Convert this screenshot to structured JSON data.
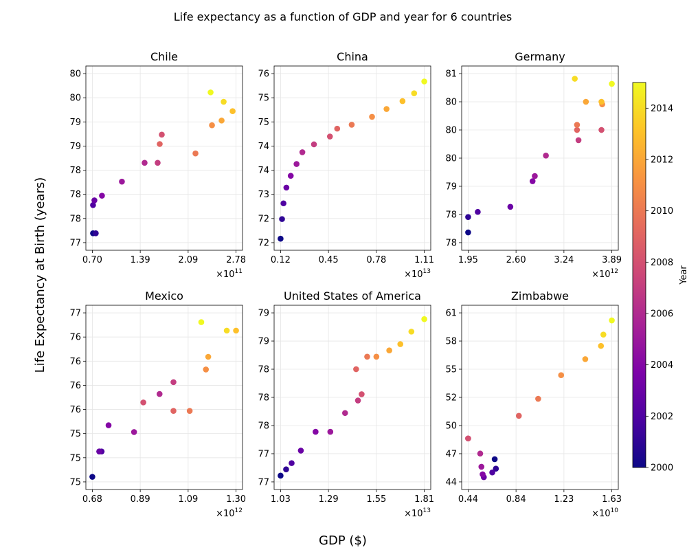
{
  "figure": {
    "title": "Life expectancy as a function of GDP and year for 6 countries",
    "xlabel": "GDP ($)",
    "ylabel": "Life Expectancy at Birth (years)"
  },
  "colorbar": {
    "label": "Year",
    "ticks": [
      "2000",
      "2002",
      "2004",
      "2006",
      "2008",
      "2010",
      "2012",
      "2014"
    ],
    "range": [
      2000,
      2015
    ],
    "colormap": "plasma"
  },
  "chart_data": [
    {
      "type": "scatter",
      "title": "Chile",
      "x_tick_labels": [
        "0.70",
        "1.39",
        "2.09",
        "2.78"
      ],
      "x_multiplier": "×10^11",
      "y_tick_labels": [
        "77",
        "78",
        "78",
        "78",
        "79",
        "79",
        "80",
        "80"
      ],
      "xlim": [
        0.69,
        2.78
      ],
      "ylim": [
        76.8,
        80.4
      ],
      "grid": true,
      "points": [
        {
          "year": 2000,
          "x": 0.7,
          "y": 77.0
        },
        {
          "year": 2001,
          "x": 0.74,
          "y": 77.0
        },
        {
          "year": 2002,
          "x": 0.7,
          "y": 77.6
        },
        {
          "year": 2003,
          "x": 0.72,
          "y": 77.7
        },
        {
          "year": 2004,
          "x": 0.83,
          "y": 77.8
        },
        {
          "year": 2005,
          "x": 1.12,
          "y": 78.1
        },
        {
          "year": 2006,
          "x": 1.45,
          "y": 78.5
        },
        {
          "year": 2007,
          "x": 1.64,
          "y": 78.5
        },
        {
          "year": 2008,
          "x": 1.7,
          "y": 79.1
        },
        {
          "year": 2009,
          "x": 1.67,
          "y": 78.9
        },
        {
          "year": 2010,
          "x": 2.19,
          "y": 78.7
        },
        {
          "year": 2011,
          "x": 2.43,
          "y": 79.3
        },
        {
          "year": 2012,
          "x": 2.57,
          "y": 79.4
        },
        {
          "year": 2013,
          "x": 2.73,
          "y": 79.6
        },
        {
          "year": 2014,
          "x": 2.6,
          "y": 79.8
        },
        {
          "year": 2015,
          "x": 2.41,
          "y": 80.0
        }
      ]
    },
    {
      "type": "scatter",
      "title": "China",
      "x_tick_labels": [
        "0.12",
        "0.45",
        "0.78",
        "1.11"
      ],
      "x_multiplier": "×10^13",
      "y_tick_labels": [
        "72",
        "72",
        "73",
        "74",
        "74",
        "75",
        "75",
        "76"
      ],
      "xlim": [
        0.12,
        1.11
      ],
      "ylim": [
        71.9,
        76.2
      ],
      "grid": true,
      "points": [
        {
          "year": 2000,
          "x": 0.12,
          "y": 72.0
        },
        {
          "year": 2001,
          "x": 0.13,
          "y": 72.5
        },
        {
          "year": 2002,
          "x": 0.14,
          "y": 72.9
        },
        {
          "year": 2003,
          "x": 0.16,
          "y": 73.3
        },
        {
          "year": 2004,
          "x": 0.19,
          "y": 73.6
        },
        {
          "year": 2005,
          "x": 0.23,
          "y": 73.9
        },
        {
          "year": 2006,
          "x": 0.27,
          "y": 74.2
        },
        {
          "year": 2007,
          "x": 0.35,
          "y": 74.4
        },
        {
          "year": 2008,
          "x": 0.46,
          "y": 74.6
        },
        {
          "year": 2009,
          "x": 0.51,
          "y": 74.8
        },
        {
          "year": 2010,
          "x": 0.61,
          "y": 74.9
        },
        {
          "year": 2011,
          "x": 0.75,
          "y": 75.1
        },
        {
          "year": 2012,
          "x": 0.85,
          "y": 75.3
        },
        {
          "year": 2013,
          "x": 0.96,
          "y": 75.5
        },
        {
          "year": 2014,
          "x": 1.04,
          "y": 75.7
        },
        {
          "year": 2015,
          "x": 1.11,
          "y": 76.0
        }
      ]
    },
    {
      "type": "scatter",
      "title": "Germany",
      "x_tick_labels": [
        "1.95",
        "2.60",
        "3.24",
        "3.89"
      ],
      "x_multiplier": "×10^12",
      "y_tick_labels": [
        "78",
        "78",
        "79",
        "80",
        "80",
        "80",
        "81"
      ],
      "xlim": [
        1.95,
        3.89
      ],
      "ylim": [
        77.8,
        81.1
      ],
      "grid": true,
      "points": [
        {
          "year": 2000,
          "x": 1.95,
          "y": 78.0
        },
        {
          "year": 2001,
          "x": 1.95,
          "y": 78.3
        },
        {
          "year": 2002,
          "x": 2.08,
          "y": 78.4
        },
        {
          "year": 2003,
          "x": 2.52,
          "y": 78.5
        },
        {
          "year": 2004,
          "x": 2.82,
          "y": 79.0
        },
        {
          "year": 2005,
          "x": 2.85,
          "y": 79.1
        },
        {
          "year": 2006,
          "x": 3.0,
          "y": 79.5
        },
        {
          "year": 2007,
          "x": 3.44,
          "y": 79.8
        },
        {
          "year": 2008,
          "x": 3.75,
          "y": 80.0
        },
        {
          "year": 2009,
          "x": 3.42,
          "y": 80.0
        },
        {
          "year": 2010,
          "x": 3.42,
          "y": 80.1
        },
        {
          "year": 2011,
          "x": 3.76,
          "y": 80.5
        },
        {
          "year": 2012,
          "x": 3.54,
          "y": 80.55
        },
        {
          "year": 2013,
          "x": 3.75,
          "y": 80.55
        },
        {
          "year": 2014,
          "x": 3.39,
          "y": 81.0
        },
        {
          "year": 2015,
          "x": 3.89,
          "y": 80.9
        }
      ]
    },
    {
      "type": "scatter",
      "title": "Mexico",
      "x_tick_labels": [
        "0.68",
        "0.89",
        "1.09",
        "1.30"
      ],
      "x_multiplier": "×10^12",
      "y_tick_labels": [
        "75",
        "75",
        "75",
        "76",
        "76",
        "76",
        "76",
        "77"
      ],
      "xlim": [
        0.68,
        1.3
      ],
      "ylim": [
        74.9,
        76.9
      ],
      "grid": true,
      "points": [
        {
          "year": 2000,
          "x": 0.68,
          "y": 74.96
        },
        {
          "year": 2001,
          "x": 0.71,
          "y": 75.26
        },
        {
          "year": 2002,
          "x": 0.72,
          "y": 75.26
        },
        {
          "year": 2003,
          "x": 0.71,
          "y": 75.26
        },
        {
          "year": 2004,
          "x": 0.75,
          "y": 75.57
        },
        {
          "year": 2005,
          "x": 0.86,
          "y": 75.49
        },
        {
          "year": 2006,
          "x": 0.97,
          "y": 75.94
        },
        {
          "year": 2007,
          "x": 1.03,
          "y": 76.08
        },
        {
          "year": 2008,
          "x": 0.9,
          "y": 75.84
        },
        {
          "year": 2009,
          "x": 1.03,
          "y": 75.74
        },
        {
          "year": 2010,
          "x": 1.1,
          "y": 75.74
        },
        {
          "year": 2011,
          "x": 1.17,
          "y": 76.23
        },
        {
          "year": 2012,
          "x": 1.18,
          "y": 76.38
        },
        {
          "year": 2013,
          "x": 1.3,
          "y": 76.69
        },
        {
          "year": 2014,
          "x": 1.26,
          "y": 76.69
        },
        {
          "year": 2015,
          "x": 1.15,
          "y": 76.79
        }
      ]
    },
    {
      "type": "scatter",
      "title": "United States of America",
      "x_tick_labels": [
        "1.03",
        "1.29",
        "1.55",
        "1.81"
      ],
      "x_multiplier": "×10^13",
      "y_tick_labels": [
        "77",
        "77",
        "78",
        "78",
        "78",
        "79",
        "79"
      ],
      "xlim": [
        1.03,
        1.81
      ],
      "ylim": [
        76.7,
        79.4
      ],
      "grid": true,
      "points": [
        {
          "year": 2000,
          "x": 1.03,
          "y": 76.8
        },
        {
          "year": 2001,
          "x": 1.06,
          "y": 76.9
        },
        {
          "year": 2002,
          "x": 1.09,
          "y": 77.0
        },
        {
          "year": 2003,
          "x": 1.14,
          "y": 77.2
        },
        {
          "year": 2004,
          "x": 1.22,
          "y": 77.5
        },
        {
          "year": 2005,
          "x": 1.3,
          "y": 77.5
        },
        {
          "year": 2006,
          "x": 1.38,
          "y": 77.8
        },
        {
          "year": 2007,
          "x": 1.45,
          "y": 78.0
        },
        {
          "year": 2008,
          "x": 1.47,
          "y": 78.1
        },
        {
          "year": 2009,
          "x": 1.44,
          "y": 78.5
        },
        {
          "year": 2010,
          "x": 1.5,
          "y": 78.7
        },
        {
          "year": 2011,
          "x": 1.55,
          "y": 78.7
        },
        {
          "year": 2012,
          "x": 1.62,
          "y": 78.8
        },
        {
          "year": 2013,
          "x": 1.68,
          "y": 78.9
        },
        {
          "year": 2014,
          "x": 1.74,
          "y": 79.1
        },
        {
          "year": 2015,
          "x": 1.81,
          "y": 79.3
        }
      ]
    },
    {
      "type": "scatter",
      "title": "Zimbabwe",
      "x_tick_labels": [
        "0.44",
        "0.84",
        "1.23",
        "1.63"
      ],
      "x_multiplier": "×10^10",
      "y_tick_labels": [
        "44",
        "47",
        "50",
        "52",
        "55",
        "58",
        "61"
      ],
      "xlim": [
        0.44,
        1.63
      ],
      "ylim": [
        43.6,
        61.5
      ],
      "grid": true,
      "points": [
        {
          "year": 2000,
          "x": 0.66,
          "y": 46.0
        },
        {
          "year": 2001,
          "x": 0.67,
          "y": 45.0
        },
        {
          "year": 2002,
          "x": 0.64,
          "y": 44.6
        },
        {
          "year": 2003,
          "x": 0.57,
          "y": 44.1
        },
        {
          "year": 2004,
          "x": 0.56,
          "y": 44.4
        },
        {
          "year": 2005,
          "x": 0.55,
          "y": 45.2
        },
        {
          "year": 2006,
          "x": 0.54,
          "y": 46.6
        },
        {
          "year": 2007,
          "x": 0.44,
          "y": 48.2
        },
        {
          "year": 2008,
          "x": 0.44,
          "y": 48.2
        },
        {
          "year": 2009,
          "x": 0.86,
          "y": 50.6
        },
        {
          "year": 2010,
          "x": 1.02,
          "y": 52.4
        },
        {
          "year": 2011,
          "x": 1.21,
          "y": 54.9
        },
        {
          "year": 2012,
          "x": 1.41,
          "y": 56.6
        },
        {
          "year": 2013,
          "x": 1.54,
          "y": 58.0
        },
        {
          "year": 2014,
          "x": 1.56,
          "y": 59.2
        },
        {
          "year": 2015,
          "x": 1.63,
          "y": 60.7
        }
      ]
    }
  ]
}
